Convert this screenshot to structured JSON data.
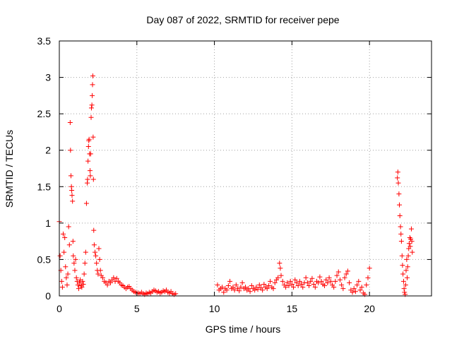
{
  "chart_data": {
    "type": "scatter",
    "title": "Day 087 of 2022, SRMTID for receiver pepe",
    "xlabel": "GPS time / hours",
    "ylabel": "SRMTID / TECUs",
    "xlim": [
      0,
      24
    ],
    "ylim": [
      0,
      3.5
    ],
    "xticks": [
      0,
      5,
      10,
      15,
      20
    ],
    "yticks": [
      0,
      0.5,
      1,
      1.5,
      2,
      2.5,
      3,
      3.5
    ],
    "xtick_labels": [
      "0",
      "5",
      "10",
      "15",
      "20"
    ],
    "ytick_labels": [
      "0",
      "0.5",
      "1",
      "1.5",
      "2",
      "2.5",
      "3",
      "3.5"
    ],
    "grid": true,
    "marker": "plus",
    "color": "#ff0000",
    "series": [
      {
        "points": [
          [
            0.0,
            1.02
          ],
          [
            0.05,
            0.55
          ],
          [
            0.1,
            0.35
          ],
          [
            0.15,
            0.2
          ],
          [
            0.2,
            0.12
          ],
          [
            0.25,
            0.85
          ],
          [
            0.3,
            0.6
          ],
          [
            0.35,
            0.8
          ],
          [
            0.4,
            0.4
          ],
          [
            0.45,
            0.25
          ],
          [
            0.5,
            0.15
          ],
          [
            0.55,
            0.3
          ],
          [
            0.6,
            0.95
          ],
          [
            0.65,
            0.7
          ],
          [
            0.7,
            2.38
          ],
          [
            0.72,
            2.0
          ],
          [
            0.75,
            1.65
          ],
          [
            0.78,
            1.5
          ],
          [
            0.8,
            1.45
          ],
          [
            0.82,
            1.38
          ],
          [
            0.85,
            1.3
          ],
          [
            0.88,
            0.75
          ],
          [
            0.9,
            0.55
          ],
          [
            0.95,
            0.45
          ],
          [
            1.0,
            0.35
          ],
          [
            1.05,
            0.5
          ],
          [
            1.1,
            0.25
          ],
          [
            1.15,
            0.2
          ],
          [
            1.2,
            0.15
          ],
          [
            1.25,
            0.1
          ],
          [
            1.3,
            0.18
          ],
          [
            1.35,
            0.22
          ],
          [
            1.4,
            0.14
          ],
          [
            1.45,
            0.12
          ],
          [
            1.5,
            0.2
          ],
          [
            1.55,
            0.16
          ],
          [
            1.6,
            0.3
          ],
          [
            1.65,
            0.45
          ],
          [
            1.7,
            0.6
          ],
          [
            1.75,
            1.27
          ],
          [
            1.8,
            1.55
          ],
          [
            1.82,
            1.6
          ],
          [
            1.85,
            1.85
          ],
          [
            1.88,
            2.05
          ],
          [
            1.9,
            2.13
          ],
          [
            1.92,
            2.15
          ],
          [
            1.95,
            1.95
          ],
          [
            1.98,
            1.72
          ],
          [
            2.0,
            1.65
          ],
          [
            2.02,
            1.95
          ],
          [
            2.05,
            2.45
          ],
          [
            2.07,
            2.58
          ],
          [
            2.1,
            2.62
          ],
          [
            2.12,
            2.75
          ],
          [
            2.14,
            2.9
          ],
          [
            2.16,
            3.02
          ],
          [
            2.18,
            2.18
          ],
          [
            2.2,
            1.6
          ],
          [
            2.22,
            0.9
          ],
          [
            2.25,
            0.7
          ],
          [
            2.3,
            0.6
          ],
          [
            2.35,
            0.55
          ],
          [
            2.4,
            0.45
          ],
          [
            2.45,
            0.35
          ],
          [
            2.5,
            0.3
          ],
          [
            2.55,
            0.65
          ],
          [
            2.6,
            0.5
          ],
          [
            2.65,
            0.35
          ],
          [
            2.7,
            0.28
          ],
          [
            2.8,
            0.25
          ],
          [
            2.9,
            0.2
          ],
          [
            3.0,
            0.18
          ],
          [
            3.1,
            0.15
          ],
          [
            3.2,
            0.2
          ],
          [
            3.3,
            0.18
          ],
          [
            3.4,
            0.22
          ],
          [
            3.5,
            0.25
          ],
          [
            3.6,
            0.2
          ],
          [
            3.7,
            0.24
          ],
          [
            3.8,
            0.2
          ],
          [
            3.9,
            0.18
          ],
          [
            4.0,
            0.15
          ],
          [
            4.1,
            0.14
          ],
          [
            4.2,
            0.12
          ],
          [
            4.3,
            0.1
          ],
          [
            4.4,
            0.12
          ],
          [
            4.5,
            0.13
          ],
          [
            4.6,
            0.1
          ],
          [
            4.7,
            0.08
          ],
          [
            4.8,
            0.06
          ],
          [
            4.9,
            0.05
          ],
          [
            5.0,
            0.04
          ],
          [
            5.1,
            0.04
          ],
          [
            5.2,
            0.03
          ],
          [
            5.3,
            0.05
          ],
          [
            5.4,
            0.03
          ],
          [
            5.5,
            0.02
          ],
          [
            5.6,
            0.04
          ],
          [
            5.7,
            0.03
          ],
          [
            5.8,
            0.05
          ],
          [
            5.9,
            0.04
          ],
          [
            6.0,
            0.06
          ],
          [
            6.1,
            0.08
          ],
          [
            6.2,
            0.07
          ],
          [
            6.3,
            0.05
          ],
          [
            6.4,
            0.06
          ],
          [
            6.5,
            0.04
          ],
          [
            6.6,
            0.05
          ],
          [
            6.7,
            0.07
          ],
          [
            6.8,
            0.06
          ],
          [
            6.9,
            0.08
          ],
          [
            7.0,
            0.05
          ],
          [
            7.1,
            0.04
          ],
          [
            7.2,
            0.06
          ],
          [
            7.3,
            0.03
          ],
          [
            7.4,
            0.02
          ],
          [
            7.5,
            0.03
          ],
          [
            10.2,
            0.15
          ],
          [
            10.3,
            0.08
          ],
          [
            10.4,
            0.1
          ],
          [
            10.5,
            0.12
          ],
          [
            10.6,
            0.05
          ],
          [
            10.7,
            0.1
          ],
          [
            10.8,
            0.08
          ],
          [
            10.9,
            0.14
          ],
          [
            11.0,
            0.2
          ],
          [
            11.1,
            0.1
          ],
          [
            11.2,
            0.12
          ],
          [
            11.3,
            0.08
          ],
          [
            11.4,
            0.15
          ],
          [
            11.5,
            0.1
          ],
          [
            11.6,
            0.07
          ],
          [
            11.7,
            0.12
          ],
          [
            11.8,
            0.18
          ],
          [
            11.9,
            0.1
          ],
          [
            12.0,
            0.12
          ],
          [
            12.1,
            0.08
          ],
          [
            12.2,
            0.1
          ],
          [
            12.3,
            0.06
          ],
          [
            12.4,
            0.14
          ],
          [
            12.5,
            0.1
          ],
          [
            12.6,
            0.08
          ],
          [
            12.7,
            0.12
          ],
          [
            12.8,
            0.09
          ],
          [
            12.9,
            0.15
          ],
          [
            13.0,
            0.11
          ],
          [
            13.1,
            0.08
          ],
          [
            13.2,
            0.16
          ],
          [
            13.3,
            0.12
          ],
          [
            13.4,
            0.1
          ],
          [
            13.5,
            0.14
          ],
          [
            13.6,
            0.2
          ],
          [
            13.7,
            0.12
          ],
          [
            13.8,
            0.1
          ],
          [
            13.9,
            0.18
          ],
          [
            14.0,
            0.22
          ],
          [
            14.1,
            0.25
          ],
          [
            14.2,
            0.45
          ],
          [
            14.25,
            0.38
          ],
          [
            14.3,
            0.28
          ],
          [
            14.4,
            0.2
          ],
          [
            14.5,
            0.15
          ],
          [
            14.6,
            0.12
          ],
          [
            14.7,
            0.18
          ],
          [
            14.8,
            0.14
          ],
          [
            14.9,
            0.2
          ],
          [
            15.0,
            0.16
          ],
          [
            15.1,
            0.12
          ],
          [
            15.2,
            0.22
          ],
          [
            15.3,
            0.18
          ],
          [
            15.4,
            0.14
          ],
          [
            15.5,
            0.2
          ],
          [
            15.6,
            0.16
          ],
          [
            15.7,
            0.12
          ],
          [
            15.8,
            0.18
          ],
          [
            15.9,
            0.25
          ],
          [
            16.0,
            0.18
          ],
          [
            16.1,
            0.14
          ],
          [
            16.2,
            0.2
          ],
          [
            16.3,
            0.24
          ],
          [
            16.4,
            0.16
          ],
          [
            16.5,
            0.12
          ],
          [
            16.6,
            0.2
          ],
          [
            16.7,
            0.18
          ],
          [
            16.8,
            0.26
          ],
          [
            16.9,
            0.2
          ],
          [
            17.0,
            0.16
          ],
          [
            17.1,
            0.14
          ],
          [
            17.2,
            0.22
          ],
          [
            17.3,
            0.18
          ],
          [
            17.4,
            0.25
          ],
          [
            17.5,
            0.2
          ],
          [
            17.6,
            0.15
          ],
          [
            17.7,
            0.12
          ],
          [
            17.8,
            0.2
          ],
          [
            17.9,
            0.28
          ],
          [
            18.0,
            0.33
          ],
          [
            18.1,
            0.22
          ],
          [
            18.2,
            0.15
          ],
          [
            18.3,
            0.1
          ],
          [
            18.4,
            0.25
          ],
          [
            18.5,
            0.3
          ],
          [
            18.6,
            0.34
          ],
          [
            18.7,
            0.18
          ],
          [
            18.8,
            0.08
          ],
          [
            18.9,
            0.05
          ],
          [
            19.0,
            0.1
          ],
          [
            19.1,
            0.06
          ],
          [
            19.2,
            0.15
          ],
          [
            19.3,
            0.2
          ],
          [
            19.4,
            0.08
          ],
          [
            19.5,
            0.12
          ],
          [
            19.6,
            0.04
          ],
          [
            19.7,
            0.02
          ],
          [
            19.8,
            0.15
          ],
          [
            19.9,
            0.25
          ],
          [
            20.0,
            0.38
          ],
          [
            21.8,
            1.62
          ],
          [
            21.83,
            1.7
          ],
          [
            21.86,
            1.55
          ],
          [
            21.9,
            1.4
          ],
          [
            21.93,
            1.25
          ],
          [
            21.96,
            1.1
          ],
          [
            22.0,
            0.95
          ],
          [
            22.03,
            0.85
          ],
          [
            22.06,
            0.75
          ],
          [
            22.1,
            0.55
          ],
          [
            22.13,
            0.42
          ],
          [
            22.16,
            0.3
          ],
          [
            22.2,
            0.2
          ],
          [
            22.23,
            0.1
          ],
          [
            22.26,
            0.05
          ],
          [
            22.3,
            0.02
          ],
          [
            22.33,
            0.15
          ],
          [
            22.36,
            0.35
          ],
          [
            22.4,
            0.5
          ],
          [
            22.43,
            0.25
          ],
          [
            22.46,
            0.4
          ],
          [
            22.5,
            0.55
          ],
          [
            22.53,
            0.65
          ],
          [
            22.56,
            0.72
          ],
          [
            22.6,
            0.8
          ],
          [
            22.63,
            0.68
          ],
          [
            22.66,
            0.78
          ],
          [
            22.7,
            0.92
          ],
          [
            22.73,
            0.75
          ],
          [
            22.76,
            0.6
          ]
        ]
      }
    ]
  }
}
